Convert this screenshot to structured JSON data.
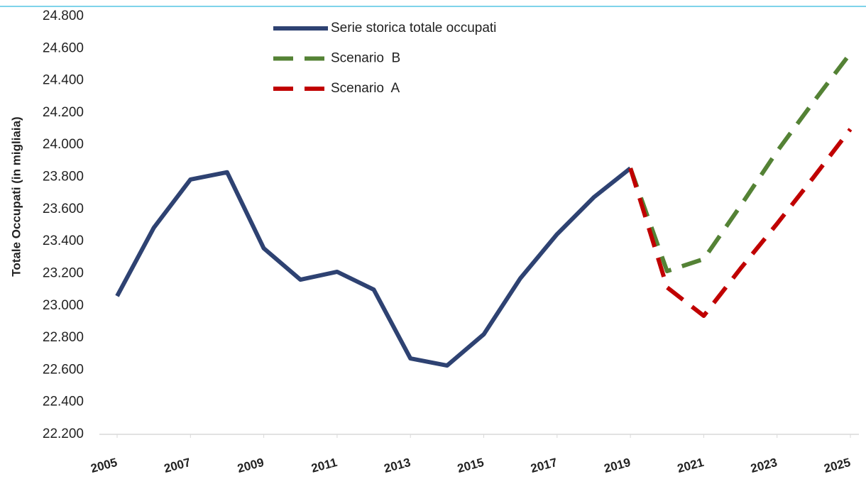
{
  "chart_data": {
    "type": "line",
    "y_label": "Totale Occupati (in migliaia)",
    "x": [
      2005,
      2006,
      2007,
      2008,
      2009,
      2010,
      2011,
      2012,
      2013,
      2014,
      2015,
      2016,
      2017,
      2018,
      2019,
      2020,
      2021,
      2022,
      2023,
      2024,
      2025
    ],
    "xlim": [
      2005,
      2025
    ],
    "xticks": [
      2005,
      2007,
      2009,
      2011,
      2013,
      2015,
      2017,
      2019,
      2021,
      2023,
      2025
    ],
    "ylim": [
      22200,
      24800
    ],
    "yticks": [
      {
        "value": 22200,
        "label": "22.200"
      },
      {
        "value": 22400,
        "label": "22.400"
      },
      {
        "value": 22600,
        "label": "22.600"
      },
      {
        "value": 22800,
        "label": "22.800"
      },
      {
        "value": 23000,
        "label": "23.000"
      },
      {
        "value": 23200,
        "label": "23.200"
      },
      {
        "value": 23400,
        "label": "23.400"
      },
      {
        "value": 23600,
        "label": "23.600"
      },
      {
        "value": 23800,
        "label": "23.800"
      },
      {
        "value": 24000,
        "label": "24.000"
      },
      {
        "value": 24200,
        "label": "24.200"
      },
      {
        "value": 24400,
        "label": "24.400"
      },
      {
        "value": 24600,
        "label": "24.600"
      },
      {
        "value": 24800,
        "label": "24.800"
      }
    ],
    "series": [
      {
        "name": "Serie storica totale occupati",
        "color": "#2e4272",
        "dashed": false,
        "values": [
          23060,
          23485,
          23785,
          23830,
          23357,
          23162,
          23211,
          23100,
          22672,
          22628,
          22822,
          23171,
          23445,
          23674,
          23855,
          null,
          null,
          null,
          null,
          null,
          null
        ]
      },
      {
        "name": "Scenario  B",
        "color": "#548235",
        "dashed": true,
        "values": [
          null,
          null,
          null,
          null,
          null,
          null,
          null,
          null,
          null,
          null,
          null,
          null,
          null,
          null,
          23855,
          23215,
          23290,
          23620,
          23960,
          24270,
          24570
        ]
      },
      {
        "name": "Scenario  A",
        "color": "#c00000",
        "dashed": true,
        "values": [
          null,
          null,
          null,
          null,
          null,
          null,
          null,
          null,
          null,
          null,
          null,
          null,
          null,
          null,
          23855,
          23114,
          22937,
          23230,
          23510,
          23800,
          24098
        ]
      }
    ]
  }
}
